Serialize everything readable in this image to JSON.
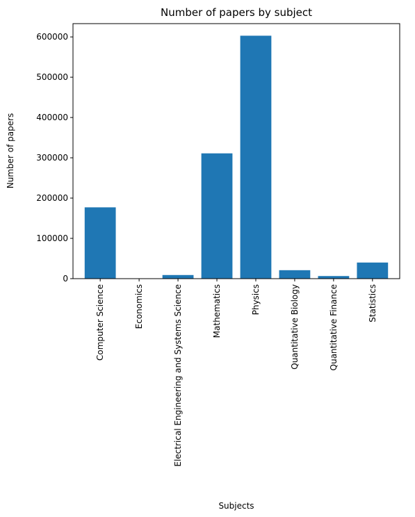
{
  "chart_data": {
    "type": "bar",
    "title": "Number of papers by subject",
    "xlabel": "Subjects",
    "ylabel": "Number of papers",
    "categories": [
      "Computer Science",
      "Economics",
      "Electrical Engineering and Systems Science",
      "Mathematics",
      "Physics",
      "Quantitative Biology",
      "Quantitative Finance",
      "Statistics"
    ],
    "values": [
      177000,
      500,
      9000,
      311000,
      603000,
      21000,
      6500,
      40000
    ],
    "ylim": [
      0,
      633000
    ],
    "yticks": [
      0,
      100000,
      200000,
      300000,
      400000,
      500000,
      600000
    ],
    "ytick_labels": [
      "0",
      "100000",
      "200000",
      "300000",
      "400000",
      "500000",
      "600000"
    ],
    "bar_color": "#1f77b4",
    "grid": false,
    "legend": "none"
  }
}
